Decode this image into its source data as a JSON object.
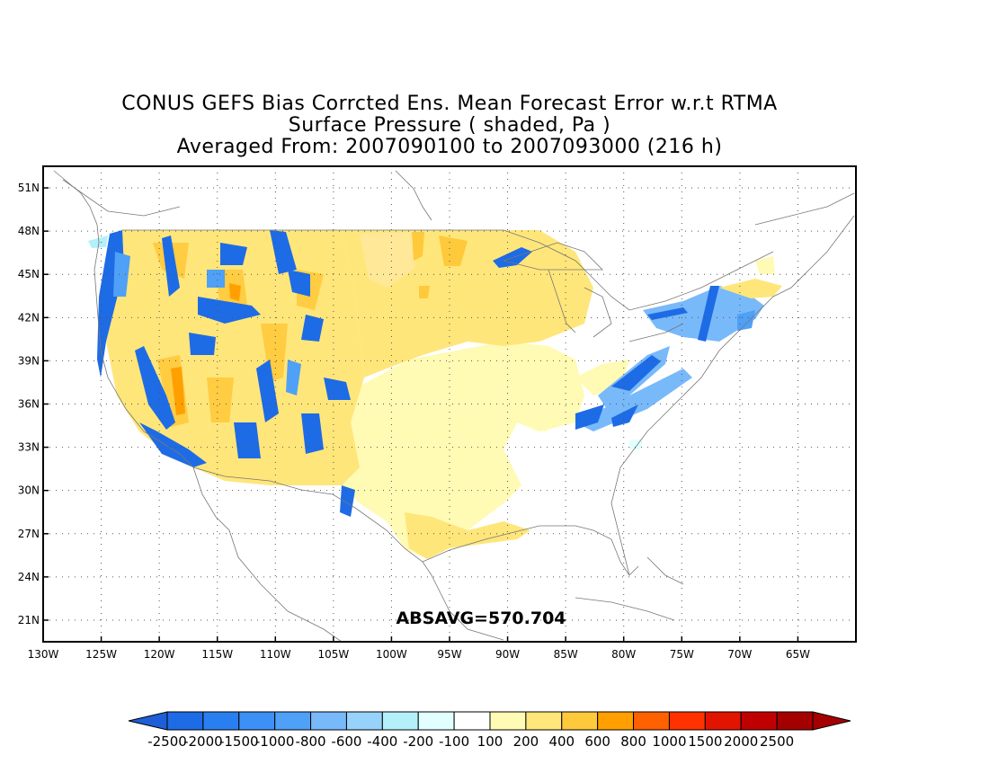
{
  "title": {
    "line1": "CONUS GEFS Bias Corrcted Ens. Mean Forecast Error w.r.t RTMA",
    "line2": "Surface Pressure ( shaded, Pa )",
    "line3": "Averaged From: 2007090100 to 2007093000 (216 h)"
  },
  "map": {
    "lon_range": [
      -130,
      -60
    ],
    "lat_range": [
      19.5,
      52.5
    ],
    "lat_ticks": [
      "51N",
      "48N",
      "45N",
      "42N",
      "39N",
      "36N",
      "33N",
      "30N",
      "27N",
      "24N",
      "21N"
    ],
    "lat_values": [
      51,
      48,
      45,
      42,
      39,
      36,
      33,
      30,
      27,
      24,
      21
    ],
    "lon_ticks": [
      "130W",
      "125W",
      "120W",
      "115W",
      "110W",
      "105W",
      "100W",
      "95W",
      "90W",
      "85W",
      "80W",
      "75W",
      "70W",
      "65W"
    ],
    "lon_values": [
      -130,
      -125,
      -120,
      -115,
      -110,
      -105,
      -100,
      -95,
      -90,
      -85,
      -80,
      -75,
      -70,
      -65
    ],
    "grid": true,
    "annotation": "ABSAVG=570.704"
  },
  "colorbar": {
    "labels": [
      "-2500",
      "-2000",
      "-1500",
      "-1000",
      "-800",
      "-600",
      "-400",
      "-200",
      "-100",
      "100",
      "200",
      "400",
      "600",
      "800",
      "1000",
      "1500",
      "2000",
      "2500"
    ],
    "colors": [
      "#1e6be6",
      "#2a7ff0",
      "#3d90f5",
      "#4fa0f7",
      "#78b9fa",
      "#96d2fa",
      "#b4f0fa",
      "#e1ffff",
      "#ffffff",
      "#fffab4",
      "#ffe67a",
      "#ffc93c",
      "#ffa000",
      "#ff6000",
      "#ff3200",
      "#e11400",
      "#c00000",
      "#a50000"
    ],
    "under_color": "#1e5fd8",
    "over_color": "#a50000"
  }
}
